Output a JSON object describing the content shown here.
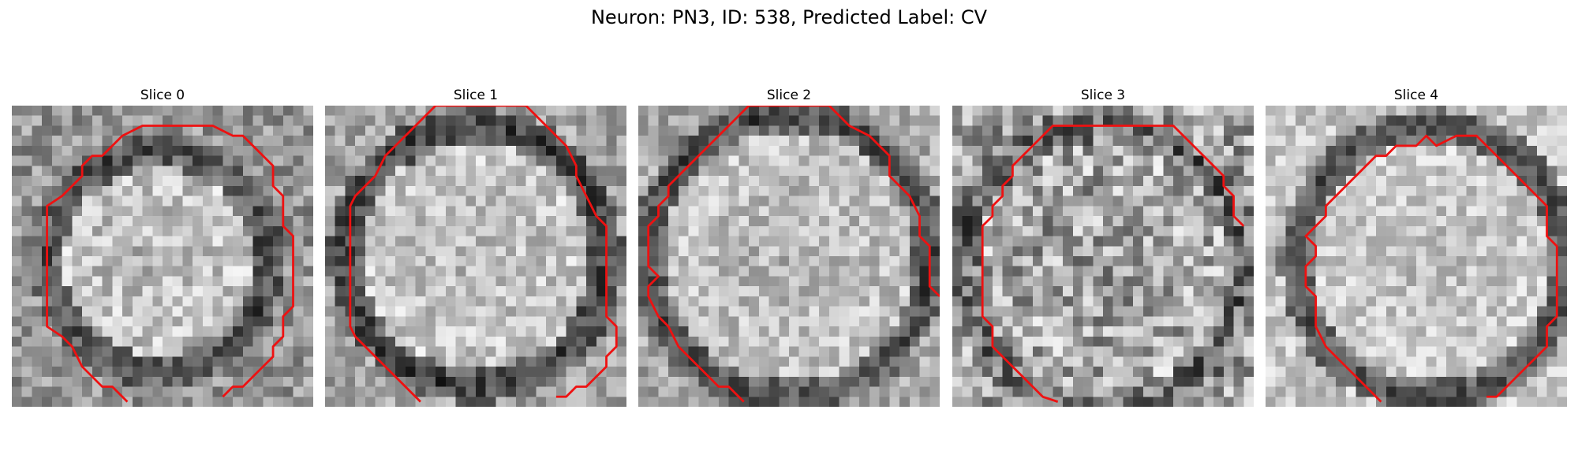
{
  "figure": {
    "title": "Neuron: PN3, ID: 538, Predicted Label: CV"
  },
  "slices": [
    {
      "title": "Slice 0"
    },
    {
      "title": "Slice 1"
    },
    {
      "title": "Slice 2"
    },
    {
      "title": "Slice 3"
    },
    {
      "title": "Slice 4"
    }
  ],
  "colors": {
    "contour": "#ee1111"
  }
}
